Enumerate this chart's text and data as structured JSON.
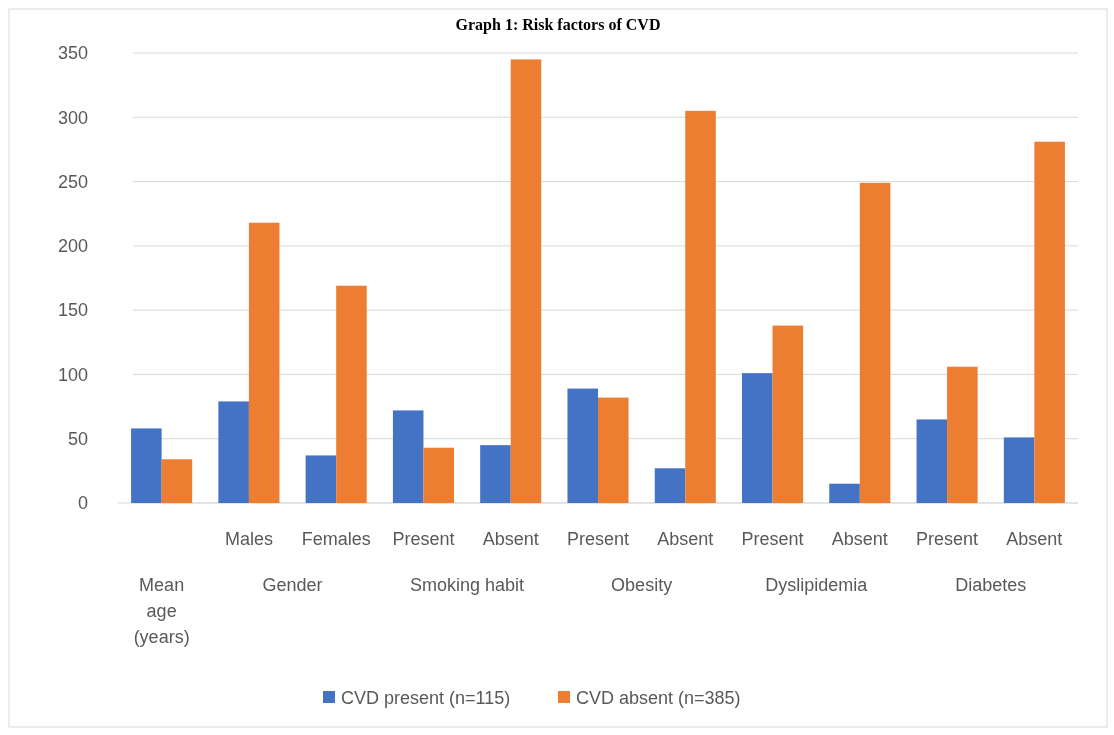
{
  "chart_data": {
    "type": "bar",
    "title": "Graph 1: Risk factors of CVD",
    "categories": [
      null,
      "Males",
      "Females",
      "Present",
      "Absent",
      "Present",
      "Absent",
      "Present",
      "Absent",
      "Present",
      "Absent"
    ],
    "series": [
      {
        "name": "CVD present (n=115)",
        "color": "#4472c4",
        "values": [
          58,
          79,
          37,
          72,
          45,
          89,
          27,
          101,
          15,
          65,
          51
        ]
      },
      {
        "name": "CVD absent (n=385)",
        "color": "#ed7d31",
        "values": [
          34,
          218,
          169,
          43,
          345,
          82,
          305,
          138,
          249,
          106,
          281
        ]
      }
    ],
    "annotations": [
      "Mean age (years)",
      "Gender",
      "Smoking habit",
      "Obesity",
      "Dyslipidemia",
      "Diabetes"
    ],
    "ylim": [
      0,
      350
    ],
    "yticks": [
      0,
      50,
      100,
      150,
      200,
      250,
      300,
      350
    ],
    "grid": "y",
    "legend": "bottom"
  }
}
